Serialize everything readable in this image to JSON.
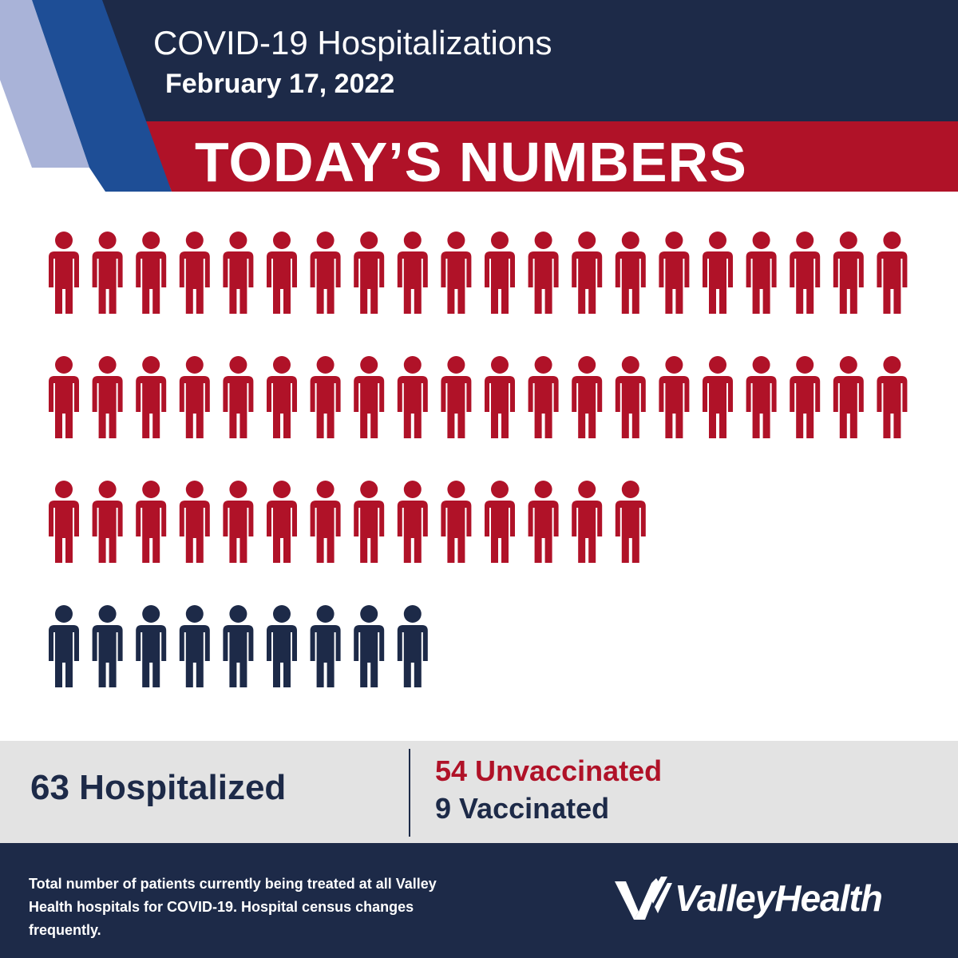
{
  "header": {
    "title": "COVID-19 Hospitalizations",
    "date": "February 17, 2022",
    "banner": "TODAY’S NUMBERS"
  },
  "colors": {
    "navy": "#1d2a48",
    "red": "#b01228",
    "light_blue": "#a9b3d8",
    "mid_blue": "#1e4e96",
    "band_gray": "#e3e3e3"
  },
  "chart_data": {
    "type": "pictograph",
    "unit": "patient",
    "total": 63,
    "series": [
      {
        "name": "Unvaccinated",
        "value": 54,
        "color": "#b01228"
      },
      {
        "name": "Vaccinated",
        "value": 9,
        "color": "#1d2a48"
      }
    ]
  },
  "stats": {
    "total_label": "63 Hospitalized",
    "unvaccinated_label": "54 Unvaccinated",
    "vaccinated_label": "9 Vaccinated"
  },
  "footer": {
    "note": "Total number of patients currently being treated at all Valley Health hospitals for COVID-19. Hospital census changes frequently.",
    "logo_text": "ValleyHealth"
  }
}
